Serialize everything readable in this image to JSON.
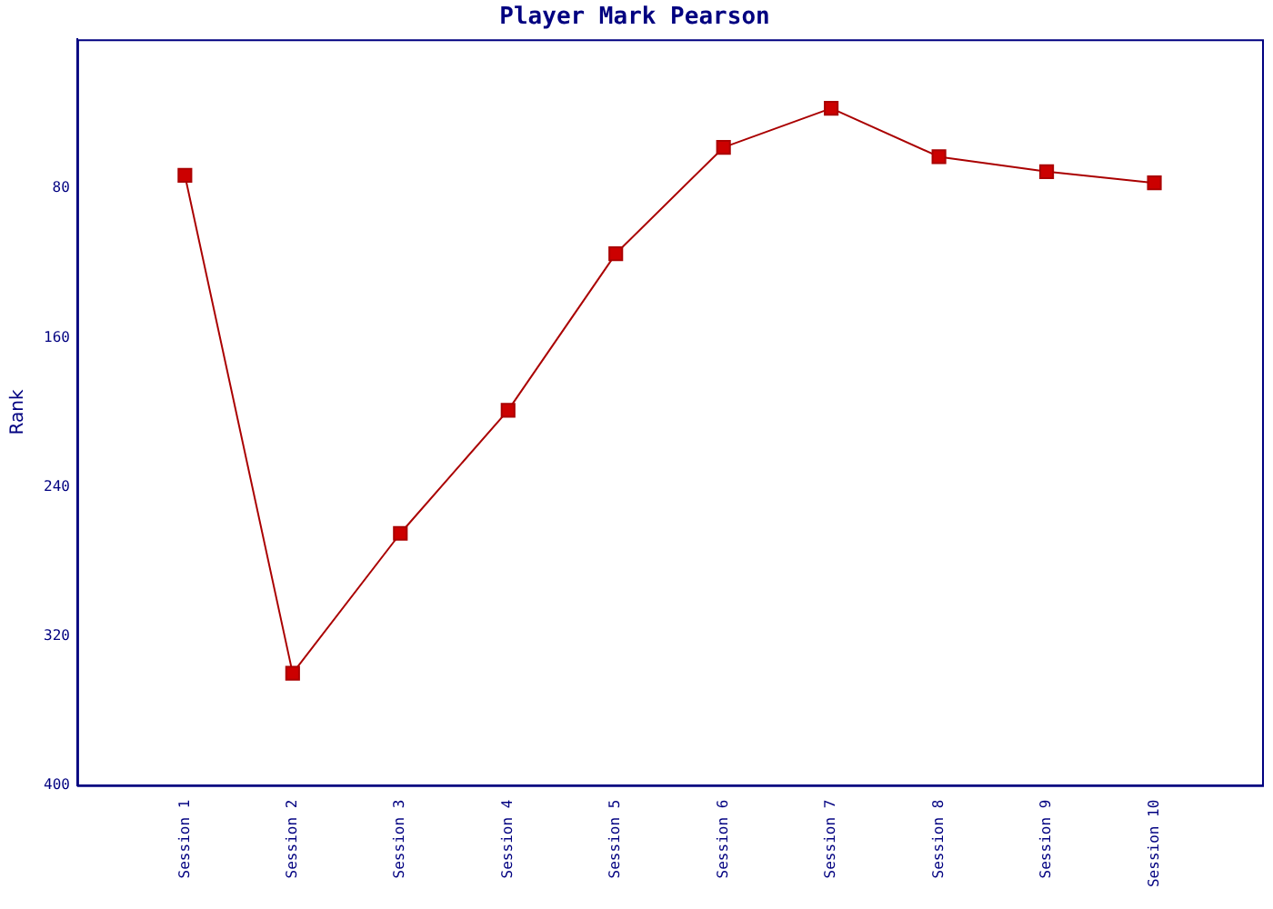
{
  "chart_data": {
    "type": "line",
    "title": "Player Mark Pearson",
    "ylabel": "Rank",
    "categories": [
      "Session 1",
      "Session 2",
      "Session 3",
      "Session 4",
      "Session 5",
      "Session 6",
      "Session 7",
      "Session 8",
      "Session 9",
      "Session 10"
    ],
    "series": [
      {
        "color": "#aa0000",
        "values": [
          73,
          340,
          265,
          199,
          115,
          58,
          37,
          63,
          71,
          77
        ]
      }
    ],
    "ylim": [
      400,
      0
    ],
    "yticks": [
      80,
      160,
      240,
      320,
      400
    ],
    "grid": false,
    "legend": false,
    "marker": "square",
    "line_style": "solid"
  }
}
